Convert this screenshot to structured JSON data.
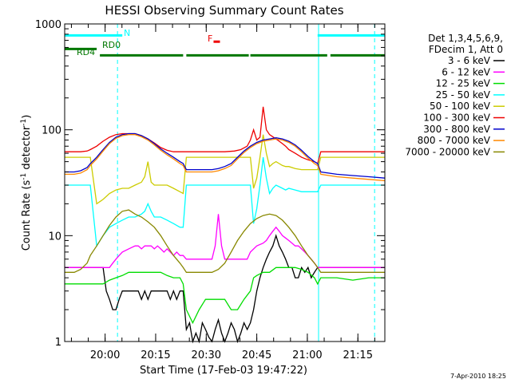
{
  "chart_data": {
    "type": "line",
    "title": "HESSI Observing Summary Count Rates",
    "xlabel": "Start Time (17-Feb-03 19:47:22)",
    "ylabel": "Count Rate (s",
    "ylabel_sup1": "-1",
    "ylabel_mid": " detector",
    "ylabel_sup2": "-1",
    "ylabel_end": ")",
    "footer": "7-Apr-2010 18:25",
    "xlim": [
      0,
      100
    ],
    "ylim": [
      1,
      1000
    ],
    "yscale": "log",
    "x_ticks": [
      {
        "label": "20:00",
        "x": 12.63
      },
      {
        "label": "20:15",
        "x": 28.42
      },
      {
        "label": "20:30",
        "x": 44.21
      },
      {
        "label": "20:45",
        "x": 60.0
      },
      {
        "label": "21:00",
        "x": 75.79
      },
      {
        "label": "21:15",
        "x": 91.58
      }
    ],
    "y_ticks": [
      {
        "label": "1",
        "y": 1
      },
      {
        "label": "10",
        "y": 10
      },
      {
        "label": "100",
        "y": 100
      },
      {
        "label": "1000",
        "y": 1000
      }
    ],
    "legend": {
      "placement": "right",
      "header": [
        "Det 1,3,4,5,6,9,",
        "FDecim 1, Att 0"
      ],
      "entries": [
        {
          "label": "3 - 6 keV",
          "color": "#000000"
        },
        {
          "label": "6 - 12 keV",
          "color": "#ff00ff"
        },
        {
          "label": "12 - 25 keV",
          "color": "#00dd00"
        },
        {
          "label": "25 - 50 keV",
          "color": "#00ffff"
        },
        {
          "label": "50 - 100 keV",
          "color": "#cccc00"
        },
        {
          "label": "100 - 300 keV",
          "color": "#ee0000"
        },
        {
          "label": "300 - 800 keV",
          "color": "#0000cc"
        },
        {
          "label": "800 - 7000 keV",
          "color": "#ff8800"
        },
        {
          "label": "7000 - 20000 keV",
          "color": "#888800"
        }
      ]
    },
    "annotations": {
      "N": {
        "label": "N",
        "color": "#00ffff",
        "segments": [
          [
            0,
            18
          ],
          [
            79,
            100
          ]
        ],
        "y": 780
      },
      "RD0": {
        "label": "RD0",
        "color": "#007700",
        "segments": [
          [
            0,
            10
          ],
          [
            11,
            37
          ],
          [
            38,
            57.5
          ],
          [
            58,
            82
          ],
          [
            83,
            100
          ]
        ],
        "y": 560
      },
      "RD4": {
        "label": "RD4",
        "color": "#007700"
      },
      "F": {
        "label": "F",
        "color": "#ee0000",
        "segments": [
          [
            46.5,
            48.5
          ]
        ],
        "y": 680
      }
    },
    "vlines": [
      {
        "x": 16.5,
        "color": "#00ffff",
        "style": "dashed"
      },
      {
        "x": 79.3,
        "color": "#00ffff",
        "style": "solid"
      },
      {
        "x": 96.8,
        "color": "#00ffff",
        "style": "dashed"
      }
    ],
    "series": [
      {
        "name": "3 - 6 keV",
        "color": "#000000",
        "x": [
          0,
          5,
          10,
          12,
          13,
          14,
          15,
          16,
          17,
          18,
          20,
          22,
          23,
          24,
          25,
          26,
          27,
          28,
          29,
          30,
          31,
          32,
          33,
          34,
          35,
          36,
          37,
          38,
          39,
          40,
          41,
          42,
          43,
          44,
          45,
          46,
          47,
          48,
          49,
          50,
          51,
          52,
          53,
          54,
          55,
          56,
          57,
          58,
          59,
          60,
          61,
          62,
          63,
          64,
          65,
          66,
          67,
          68,
          69,
          70,
          71,
          72,
          73,
          74,
          75,
          76,
          77,
          78,
          79,
          80,
          82,
          85,
          88,
          90,
          93,
          96,
          100
        ],
        "y": [
          5,
          5,
          5,
          5,
          3,
          2.5,
          2,
          2,
          2.5,
          3,
          3,
          3,
          3,
          2.5,
          3,
          2.5,
          3,
          3,
          3,
          3,
          3,
          3,
          2.5,
          3,
          2.5,
          3,
          3,
          1.3,
          1.5,
          1,
          1.2,
          1,
          1.5,
          1.3,
          1.1,
          1,
          1.3,
          1.6,
          1.2,
          1,
          1.2,
          1.5,
          1.3,
          1,
          1.2,
          1.5,
          1.3,
          1.5,
          2,
          3,
          4,
          5,
          6,
          7,
          8,
          10,
          8,
          7,
          6,
          5,
          5,
          4,
          4,
          5,
          4.5,
          5,
          4,
          4.5,
          5,
          5,
          5,
          5,
          5,
          5,
          5,
          5,
          5
        ]
      },
      {
        "name": "6 - 12 keV",
        "color": "#ff00ff",
        "x": [
          0,
          5,
          10,
          12,
          13,
          14,
          15,
          16,
          17,
          18,
          20,
          22,
          23,
          24,
          25,
          26,
          27,
          28,
          29,
          30,
          31,
          32,
          33,
          34,
          35,
          36,
          37,
          38,
          40,
          42,
          44,
          46,
          47,
          48,
          49,
          50,
          52,
          54,
          56,
          57,
          58,
          60,
          62,
          63,
          64,
          65,
          66,
          67,
          68,
          69,
          70,
          71,
          72,
          73,
          74,
          75,
          76,
          77,
          78,
          79,
          80,
          85,
          90,
          95,
          100
        ],
        "y": [
          5,
          5,
          5,
          5,
          5,
          5,
          5.5,
          6,
          6.5,
          7,
          7.5,
          8,
          8,
          7.5,
          8,
          8,
          8,
          7.5,
          8,
          7.5,
          7,
          7.5,
          7,
          6.5,
          7,
          6.5,
          6.5,
          6,
          6,
          6,
          6,
          6,
          8,
          16,
          8,
          6,
          6,
          6,
          6,
          6,
          7,
          8,
          8.5,
          9,
          10,
          11,
          12,
          11,
          10,
          9.5,
          9,
          8.5,
          8,
          8,
          7.5,
          7,
          6.5,
          6,
          5.5,
          5,
          5,
          5,
          5,
          5,
          5
        ]
      },
      {
        "name": "12 - 25 keV",
        "color": "#00dd00",
        "x": [
          0,
          5,
          10,
          12,
          14,
          16,
          18,
          20,
          22,
          24,
          26,
          28,
          30,
          32,
          34,
          36,
          37,
          38,
          40,
          42,
          44,
          46,
          48,
          50,
          52,
          54,
          56,
          58,
          59,
          60,
          62,
          64,
          66,
          68,
          70,
          72,
          74,
          76,
          78,
          79,
          80,
          85,
          90,
          95,
          100
        ],
        "y": [
          3.5,
          3.5,
          3.5,
          3.5,
          3.8,
          4,
          4.2,
          4.5,
          4.5,
          4.5,
          4.5,
          4.5,
          4.5,
          4.2,
          4,
          4,
          3.5,
          2,
          1.5,
          2,
          2.5,
          2.5,
          2.5,
          2.5,
          2,
          2,
          2.5,
          3,
          4,
          4.2,
          4.5,
          4.5,
          5,
          5,
          5,
          5,
          4.8,
          4.5,
          4,
          3.5,
          4,
          4,
          3.8,
          4,
          4
        ]
      },
      {
        "name": "25 - 50 keV",
        "color": "#00ffff",
        "x": [
          0,
          5,
          8,
          10,
          12,
          14,
          16,
          18,
          20,
          22,
          24,
          25,
          26,
          27,
          28,
          30,
          32,
          34,
          36,
          37,
          38,
          40,
          45,
          50,
          55,
          57,
          58,
          59,
          60,
          61,
          62,
          63,
          64,
          65,
          66,
          67,
          68,
          69,
          70,
          72,
          74,
          76,
          78,
          79,
          80,
          85,
          90,
          95,
          100
        ],
        "y": [
          30,
          30,
          30,
          8,
          10,
          12,
          13,
          14,
          15,
          15,
          16,
          17,
          20,
          17,
          15,
          15,
          14,
          13,
          12,
          12,
          30,
          30,
          30,
          30,
          30,
          30,
          30,
          13,
          18,
          30,
          55,
          35,
          25,
          28,
          30,
          29,
          28,
          27,
          28,
          27,
          26,
          26,
          26,
          26,
          30,
          30,
          30,
          30,
          30
        ]
      },
      {
        "name": "50 - 100 keV",
        "color": "#cccc00",
        "x": [
          0,
          5,
          8,
          10,
          12,
          14,
          16,
          18,
          20,
          22,
          24,
          25,
          26,
          27,
          28,
          30,
          32,
          34,
          36,
          37,
          38,
          40,
          45,
          50,
          55,
          57,
          58,
          59,
          60,
          61,
          62,
          63,
          64,
          65,
          66,
          67,
          68,
          69,
          70,
          72,
          74,
          76,
          78,
          79,
          80,
          85,
          90,
          95,
          100
        ],
        "y": [
          55,
          55,
          55,
          20,
          22,
          25,
          27,
          28,
          28,
          30,
          32,
          36,
          50,
          32,
          30,
          30,
          30,
          28,
          26,
          25,
          55,
          55,
          55,
          55,
          55,
          55,
          55,
          28,
          35,
          55,
          90,
          60,
          45,
          48,
          50,
          48,
          46,
          45,
          45,
          43,
          42,
          42,
          42,
          42,
          55,
          55,
          55,
          55,
          55
        ]
      },
      {
        "name": "100 - 300 keV",
        "color": "#ee0000",
        "x": [
          0,
          3,
          5,
          7,
          8,
          10,
          12,
          14,
          16,
          18,
          20,
          22,
          24,
          26,
          28,
          30,
          32,
          34,
          36,
          37,
          38,
          40,
          45,
          50,
          53,
          55,
          57,
          58,
          59,
          60,
          61,
          62,
          63,
          64,
          65,
          66,
          67,
          68,
          69,
          70,
          72,
          74,
          76,
          78,
          79,
          80,
          85,
          90,
          95,
          100
        ],
        "y": [
          62,
          62,
          62,
          63,
          65,
          70,
          78,
          85,
          90,
          92,
          92,
          92,
          88,
          82,
          75,
          68,
          64,
          62,
          62,
          62,
          62,
          62,
          62,
          62,
          63,
          65,
          70,
          80,
          100,
          80,
          85,
          165,
          100,
          90,
          86,
          82,
          78,
          74,
          70,
          65,
          60,
          55,
          52,
          50,
          48,
          62,
          62,
          62,
          62,
          62
        ]
      },
      {
        "name": "300 - 800 keV",
        "color": "#0000cc",
        "x": [
          0,
          3,
          5,
          7,
          8,
          10,
          12,
          14,
          16,
          18,
          20,
          22,
          24,
          26,
          28,
          30,
          32,
          34,
          36,
          37,
          38,
          40,
          42,
          44,
          46,
          48,
          50,
          52,
          54,
          56,
          58,
          60,
          62,
          64,
          66,
          68,
          70,
          72,
          74,
          76,
          78,
          79,
          80,
          85,
          90,
          95,
          100
        ],
        "y": [
          40,
          40,
          41,
          44,
          48,
          55,
          65,
          76,
          85,
          90,
          92,
          92,
          88,
          82,
          74,
          66,
          60,
          55,
          50,
          48,
          42,
          42,
          42,
          42,
          42,
          43,
          45,
          48,
          55,
          63,
          70,
          76,
          80,
          82,
          84,
          82,
          78,
          72,
          64,
          56,
          50,
          48,
          40,
          38,
          37,
          36,
          35
        ]
      },
      {
        "name": "800 - 7000 keV",
        "color": "#ff8800",
        "x": [
          0,
          3,
          5,
          7,
          8,
          10,
          12,
          14,
          16,
          18,
          20,
          22,
          24,
          26,
          28,
          30,
          32,
          34,
          36,
          37,
          38,
          40,
          42,
          44,
          46,
          48,
          50,
          52,
          54,
          56,
          58,
          60,
          62,
          64,
          66,
          68,
          70,
          72,
          74,
          76,
          78,
          79,
          80,
          85,
          90,
          95,
          100
        ],
        "y": [
          38,
          38,
          39,
          42,
          46,
          53,
          63,
          74,
          83,
          88,
          90,
          90,
          86,
          80,
          72,
          64,
          58,
          53,
          48,
          46,
          40,
          40,
          40,
          40,
          40,
          41,
          43,
          46,
          53,
          61,
          68,
          74,
          78,
          80,
          82,
          80,
          76,
          70,
          62,
          54,
          48,
          46,
          38,
          36,
          35,
          34,
          33
        ]
      },
      {
        "name": "7000 - 20000 keV",
        "color": "#888800",
        "x": [
          0,
          3,
          5,
          7,
          8,
          10,
          12,
          14,
          16,
          18,
          20,
          22,
          24,
          26,
          28,
          30,
          32,
          34,
          36,
          37,
          38,
          40,
          42,
          44,
          46,
          48,
          50,
          52,
          54,
          56,
          58,
          60,
          62,
          64,
          66,
          68,
          70,
          72,
          74,
          76,
          78,
          79,
          80,
          85,
          90,
          95,
          100
        ],
        "y": [
          4.5,
          4.5,
          4.8,
          5.5,
          6.5,
          8,
          10,
          12.5,
          15,
          17,
          17.5,
          16,
          15,
          13.5,
          12,
          10,
          8,
          6.5,
          5.5,
          5,
          4.5,
          4.5,
          4.5,
          4.5,
          4.5,
          4.8,
          5.5,
          7,
          9,
          11,
          13,
          14.5,
          15.5,
          16,
          15.5,
          14,
          12,
          10,
          8,
          6.5,
          5.5,
          5,
          4.5,
          4.5,
          4.5,
          4.5,
          4.5
        ]
      }
    ]
  }
}
